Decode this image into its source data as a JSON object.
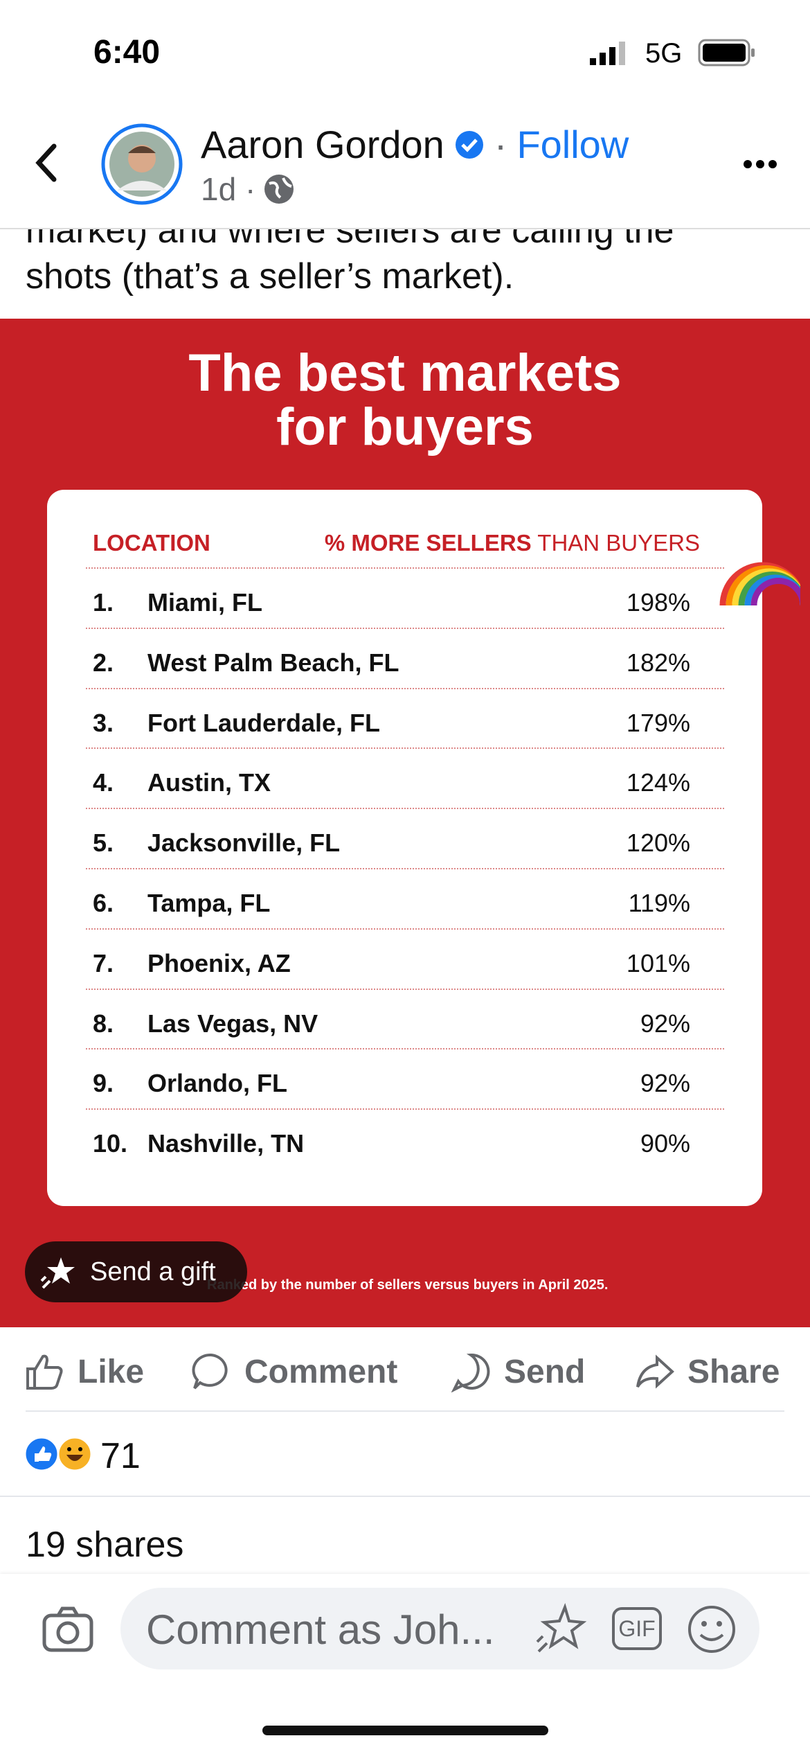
{
  "status_bar": {
    "time": "6:40",
    "network": "5G"
  },
  "header": {
    "name": "Aaron Gordon",
    "follow": "Follow",
    "meta": "1d ·"
  },
  "post_text": [
    "market) and where sellers are calling the",
    "shots (that’s a seller’s market)."
  ],
  "image": {
    "title": [
      "The best markets",
      "for buyers"
    ],
    "table": {
      "header": {
        "location": "LOCATION",
        "measure_bold": "% MORE SELLERS",
        "measure_rest": "THAN BUYERS"
      },
      "rows": [
        [
          "1.",
          "Miami, FL",
          "198%"
        ],
        [
          "2.",
          "West Palm Beach, FL",
          "182%"
        ],
        [
          "3.",
          "Fort Lauderdale, FL",
          "179%"
        ],
        [
          "4.",
          "Austin, TX",
          "124%"
        ],
        [
          "5.",
          "Jacksonville, FL",
          "120%"
        ],
        [
          "6.",
          "Tampa, FL",
          "119%"
        ],
        [
          "7.",
          "Phoenix, AZ",
          "101%"
        ],
        [
          "8.",
          "Las Vegas, NV",
          "92%"
        ],
        [
          "9.",
          "Orlando, FL",
          "92%"
        ],
        [
          "10.",
          "Nashville, TN",
          "90%"
        ]
      ]
    },
    "footnote": "Ranked by the number of sellers versus buyers in April 2025.",
    "gift_button": "Send a gift"
  },
  "actions": [
    "Like",
    "Comment",
    "Send",
    "Share"
  ],
  "reactions": {
    "count": "71"
  },
  "shares": "19 shares",
  "comment_box": {
    "placeholder": "Comment as Joh...",
    "gif": "GIF"
  }
}
